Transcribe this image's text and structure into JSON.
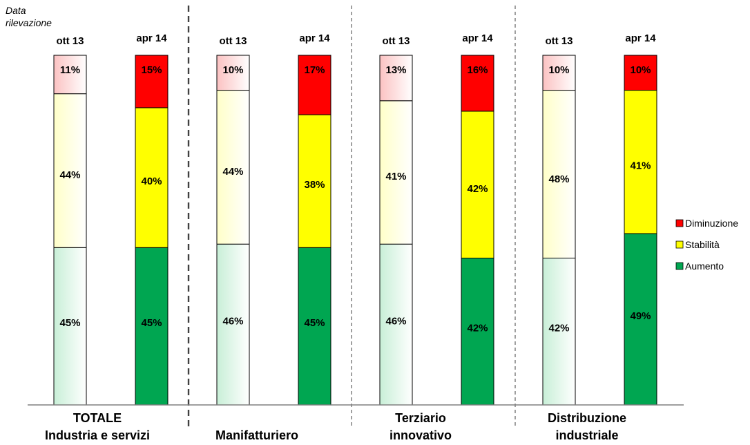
{
  "chart_data": {
    "type": "bar",
    "stacked": true,
    "percent": true,
    "note": "Data rilevazione",
    "ylim": [
      0,
      100
    ],
    "grid": false,
    "legend_position": "right",
    "groups": [
      {
        "label_lines": [
          "TOTALE",
          "Industria e servizi"
        ]
      },
      {
        "label_lines": [
          "Manifatturiero"
        ]
      },
      {
        "label_lines": [
          "Terziario",
          "innovativo"
        ]
      },
      {
        "label_lines": [
          "Distribuzione",
          "industriale"
        ]
      }
    ],
    "categories": [
      {
        "label": "ott 13",
        "group": 0
      },
      {
        "label": "apr 14",
        "group": 0
      },
      {
        "label": "ott 13",
        "group": 1
      },
      {
        "label": "apr 14",
        "group": 1
      },
      {
        "label": "ott 13",
        "group": 2
      },
      {
        "label": "apr 14",
        "group": 2
      },
      {
        "label": "ott 13",
        "group": 3
      },
      {
        "label": "apr 14",
        "group": 3
      }
    ],
    "series": [
      {
        "name": "Aumento",
        "values": [
          45,
          45,
          46,
          45,
          46,
          42,
          42,
          49
        ],
        "color": "#00A651",
        "color_faded": "#C8EFD7"
      },
      {
        "name": "Stabilità",
        "values": [
          44,
          40,
          44,
          38,
          41,
          42,
          48,
          41
        ],
        "color": "#FFFF00",
        "color_faded": "#FFFFC8"
      },
      {
        "name": "Diminuzione",
        "values": [
          11,
          15,
          10,
          17,
          13,
          16,
          10,
          10
        ],
        "color": "#FF0000",
        "color_faded": "#FBC2C2"
      }
    ],
    "legend": [
      "Diminuzione",
      "Stabilità",
      "Aumento"
    ]
  }
}
